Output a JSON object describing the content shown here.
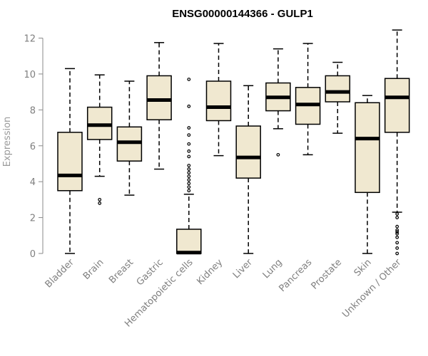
{
  "chart_data": {
    "type": "boxplot",
    "title": "ENSG00000144366 - GULP1",
    "ylabel": "Expression",
    "xlabel": "",
    "ylim": [
      0,
      12.4
    ],
    "yticks": [
      0,
      2,
      4,
      6,
      8,
      10,
      12
    ],
    "grid": false,
    "box_fill": "#f0e8d0",
    "categories": [
      "Bladder",
      "Brain",
      "Breast",
      "Gastric",
      "Hematopoietic cells",
      "Kidney",
      "Liver",
      "Lung",
      "Pancreas",
      "Prostate",
      "Skin",
      "Unknown / Other"
    ],
    "boxes": [
      {
        "whisker_low": 0.0,
        "q1": 3.5,
        "median": 4.35,
        "q3": 6.75,
        "whisker_high": 10.3,
        "outliers": []
      },
      {
        "whisker_low": 4.3,
        "q1": 6.35,
        "median": 7.15,
        "q3": 8.15,
        "whisker_high": 9.95,
        "outliers": [
          2.8,
          3.0
        ]
      },
      {
        "whisker_low": 3.25,
        "q1": 5.15,
        "median": 6.2,
        "q3": 7.05,
        "whisker_high": 9.6,
        "outliers": []
      },
      {
        "whisker_low": 4.7,
        "q1": 7.45,
        "median": 8.55,
        "q3": 9.9,
        "whisker_high": 11.75,
        "outliers": []
      },
      {
        "whisker_low": 0.0,
        "q1": 0.0,
        "median": 0.05,
        "q3": 1.35,
        "whisker_high": 3.3,
        "outliers": [
          3.5,
          3.7,
          3.9,
          4.1,
          4.3,
          4.5,
          4.7,
          4.9,
          5.4,
          5.7,
          6.1,
          6.6,
          7.0,
          8.2,
          9.7
        ]
      },
      {
        "whisker_low": 5.45,
        "q1": 7.4,
        "median": 8.15,
        "q3": 9.6,
        "whisker_high": 11.7,
        "outliers": []
      },
      {
        "whisker_low": 0.0,
        "q1": 4.2,
        "median": 5.35,
        "q3": 7.1,
        "whisker_high": 9.35,
        "outliers": []
      },
      {
        "whisker_low": 6.95,
        "q1": 7.95,
        "median": 8.7,
        "q3": 9.5,
        "whisker_high": 11.4,
        "outliers": [
          5.5
        ]
      },
      {
        "whisker_low": 5.5,
        "q1": 7.2,
        "median": 8.3,
        "q3": 9.25,
        "whisker_high": 11.7,
        "outliers": []
      },
      {
        "whisker_low": 6.7,
        "q1": 8.45,
        "median": 9.0,
        "q3": 9.9,
        "whisker_high": 10.65,
        "outliers": []
      },
      {
        "whisker_low": 0.0,
        "q1": 3.4,
        "median": 6.4,
        "q3": 8.4,
        "whisker_high": 8.8,
        "outliers": []
      },
      {
        "whisker_low": 2.3,
        "q1": 6.75,
        "median": 8.7,
        "q3": 9.75,
        "whisker_high": 12.45,
        "outliers": [
          0.0,
          0.3,
          0.6,
          0.9,
          1.1,
          1.2,
          1.3,
          1.5,
          2.0,
          2.2
        ]
      }
    ]
  }
}
